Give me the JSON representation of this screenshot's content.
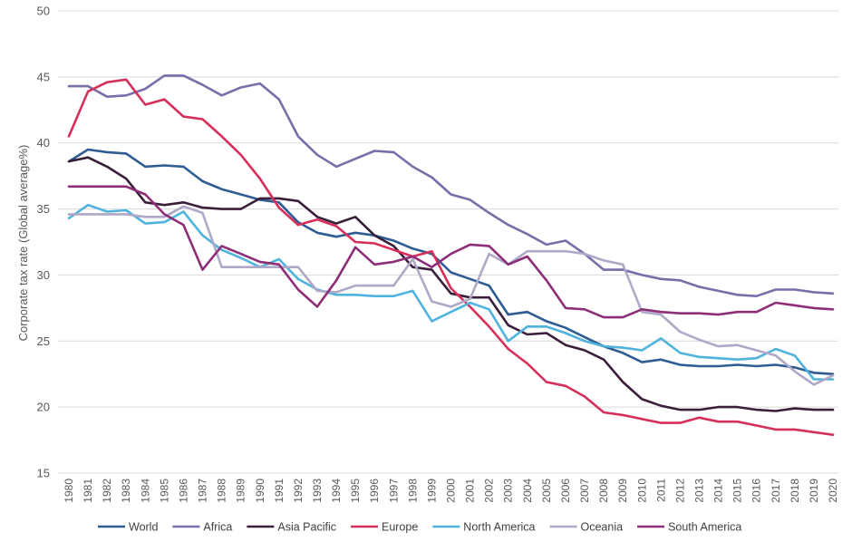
{
  "chart_data": {
    "type": "line",
    "title": "",
    "xlabel": "",
    "ylabel": "Corporate tax rate (Global average%)",
    "ylim": [
      15,
      50
    ],
    "yticks": [
      15,
      20,
      25,
      30,
      35,
      40,
      45,
      50
    ],
    "grid": "horizontal",
    "legend_position": "bottom",
    "x": [
      "1980",
      "1981",
      "1982",
      "1983",
      "1984",
      "1985",
      "1986",
      "1987",
      "1988",
      "1989",
      "1990",
      "1991",
      "1992",
      "1993",
      "1994",
      "1995",
      "1996",
      "1997",
      "1998",
      "1999",
      "2000",
      "2001",
      "2002",
      "2003",
      "2004",
      "2005",
      "2006",
      "2007",
      "2008",
      "2009",
      "2010",
      "2011",
      "2012",
      "2013",
      "2014",
      "2015",
      "2016",
      "2017",
      "2018",
      "2019",
      "2020"
    ],
    "series": [
      {
        "name": "World",
        "color": "#2E5C93",
        "values": [
          38.6,
          39.5,
          39.3,
          39.2,
          38.2,
          38.3,
          38.2,
          37.1,
          36.5,
          36.1,
          35.7,
          35.5,
          34.0,
          33.2,
          32.9,
          33.2,
          33.0,
          32.6,
          32.0,
          31.6,
          30.2,
          29.7,
          29.2,
          27.0,
          27.2,
          26.5,
          26.0,
          25.3,
          24.6,
          24.1,
          23.4,
          23.6,
          23.2,
          23.1,
          23.1,
          23.2,
          23.1,
          23.2,
          23.0,
          22.6,
          22.5
        ]
      },
      {
        "name": "Africa",
        "color": "#7A6DA8",
        "values": [
          44.3,
          44.3,
          43.5,
          43.6,
          44.1,
          45.1,
          45.1,
          44.4,
          43.6,
          44.2,
          44.5,
          43.3,
          40.5,
          39.1,
          38.2,
          38.8,
          39.4,
          39.3,
          38.2,
          37.4,
          36.1,
          35.7,
          34.7,
          33.8,
          33.1,
          32.3,
          32.6,
          31.6,
          30.4,
          30.4,
          30.0,
          29.7,
          29.6,
          29.1,
          28.8,
          28.5,
          28.4,
          28.9,
          28.9,
          28.7,
          28.6
        ]
      },
      {
        "name": "Asia Pacific",
        "color": "#3A1F3A",
        "values": [
          38.6,
          38.9,
          38.2,
          37.3,
          35.5,
          35.3,
          35.5,
          35.1,
          35.0,
          35.0,
          35.8,
          35.8,
          35.6,
          34.4,
          33.9,
          34.4,
          33.0,
          32.2,
          30.6,
          30.4,
          28.6,
          28.3,
          28.3,
          26.2,
          25.5,
          25.6,
          24.7,
          24.3,
          23.6,
          21.9,
          20.6,
          20.1,
          19.8,
          19.8,
          20.0,
          20.0,
          19.8,
          19.7,
          19.9,
          19.8,
          19.8
        ]
      },
      {
        "name": "Europe",
        "color": "#D62F5A",
        "values": [
          40.5,
          43.9,
          44.6,
          44.8,
          42.9,
          43.3,
          42.0,
          41.8,
          40.5,
          39.1,
          37.3,
          35.1,
          33.8,
          34.2,
          33.7,
          32.5,
          32.4,
          31.9,
          31.4,
          31.8,
          29.0,
          27.6,
          26.1,
          24.4,
          23.3,
          21.9,
          21.6,
          20.8,
          19.6,
          19.4,
          19.1,
          18.8,
          18.8,
          19.2,
          18.9,
          18.9,
          18.6,
          18.3,
          18.3,
          18.1,
          17.9
        ]
      },
      {
        "name": "North America",
        "color": "#4FB3DD",
        "values": [
          34.3,
          35.3,
          34.8,
          34.9,
          33.9,
          34.0,
          34.8,
          33.0,
          31.9,
          31.3,
          30.6,
          31.2,
          29.7,
          28.9,
          28.5,
          28.5,
          28.4,
          28.4,
          28.8,
          26.5,
          27.2,
          27.9,
          27.4,
          25.0,
          26.1,
          26.1,
          25.6,
          25.0,
          24.6,
          24.5,
          24.3,
          25.2,
          24.1,
          23.8,
          23.7,
          23.6,
          23.7,
          24.4,
          23.9,
          22.1,
          22.1
        ]
      },
      {
        "name": "Oceania",
        "color": "#AFA8C6",
        "values": [
          34.6,
          34.6,
          34.6,
          34.6,
          34.4,
          34.4,
          35.2,
          34.7,
          30.6,
          30.6,
          30.6,
          30.6,
          30.6,
          28.8,
          28.7,
          29.2,
          29.2,
          29.2,
          31.2,
          28.0,
          27.6,
          28.2,
          31.6,
          30.8,
          31.8,
          31.8,
          31.8,
          31.6,
          31.1,
          30.8,
          27.2,
          27.0,
          25.7,
          25.1,
          24.6,
          24.7,
          24.3,
          23.9,
          22.7,
          21.7,
          22.4
        ]
      },
      {
        "name": "South America",
        "color": "#8D2E78",
        "values": [
          36.7,
          36.7,
          36.7,
          36.7,
          36.1,
          34.6,
          33.8,
          30.4,
          32.2,
          31.6,
          31.0,
          30.8,
          28.9,
          27.6,
          29.6,
          32.1,
          30.8,
          31.0,
          31.4,
          30.6,
          31.6,
          32.3,
          32.2,
          30.8,
          31.4,
          29.6,
          27.5,
          27.4,
          26.8,
          26.8,
          27.4,
          27.2,
          27.1,
          27.1,
          27.0,
          27.2,
          27.2,
          27.9,
          27.7,
          27.5,
          27.4
        ]
      }
    ]
  }
}
